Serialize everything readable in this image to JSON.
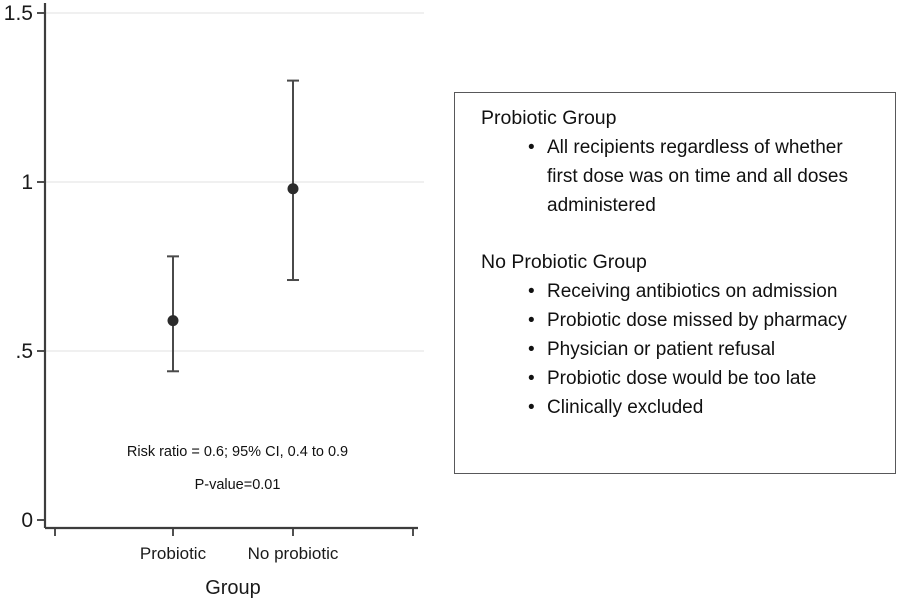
{
  "colors": {
    "axis": "#3d3d3d",
    "grid": "#ebebeb",
    "error_bar": "#4a4a4a",
    "marker": "#2b2b2b",
    "text": "#1a1a1a",
    "box_border": "#58585a",
    "background": "#ffffff"
  },
  "chart_data": {
    "type": "scatter",
    "subtype": "point-estimate-with-95ci",
    "title": "",
    "xlabel": "Group",
    "ylabel": "",
    "ylim": [
      0,
      1.5
    ],
    "grid": true,
    "legend": "none",
    "categories": [
      "Probiotic",
      "No probiotic"
    ],
    "yticks": [
      {
        "label": "0",
        "value": 0,
        "grid": false
      },
      {
        "label": ".5",
        "value": 0.5,
        "grid": true
      },
      {
        "label": "1",
        "value": 1,
        "grid": true
      },
      {
        "label": "1.5",
        "value": 1.5,
        "grid": true
      }
    ],
    "series": [
      {
        "name": "Risk ratio (95% CI)",
        "points": [
          {
            "category": "Probiotic",
            "estimate": 0.59,
            "ci_low": 0.44,
            "ci_high": 0.78
          },
          {
            "category": "No probiotic",
            "estimate": 0.98,
            "ci_low": 0.71,
            "ci_high": 1.3
          }
        ]
      }
    ],
    "annotations": [
      "Risk ratio = 0.6; 95% CI, 0.4 to 0.9",
      "P-value=0.01"
    ]
  },
  "info_box": {
    "groups": [
      {
        "title": "Probiotic Group",
        "items": [
          "All recipients regardless of whether first dose was on time and all doses administered"
        ]
      },
      {
        "title": "No Probiotic Group",
        "items": [
          "Receiving antibiotics on admission",
          "Probiotic dose missed by pharmacy",
          "Physician or patient refusal",
          "Probiotic dose would be too late",
          "Clinically excluded"
        ]
      }
    ]
  }
}
